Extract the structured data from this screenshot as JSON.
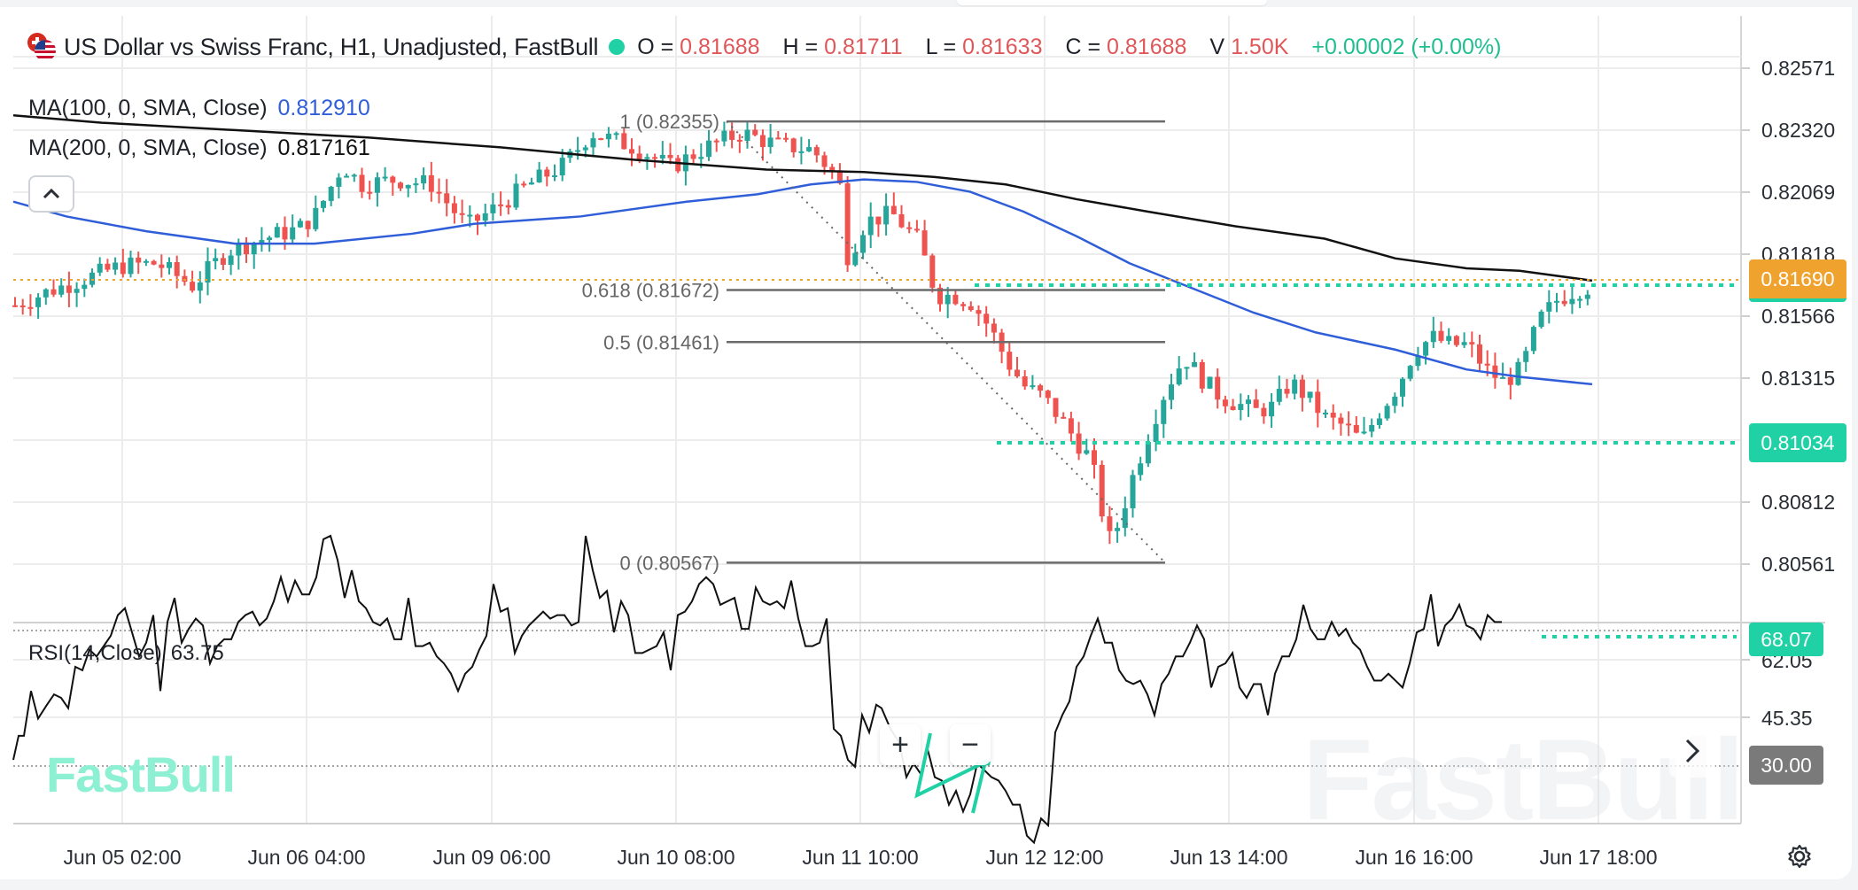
{
  "header": {
    "symbol_title": "US Dollar vs Swiss Franc, H1, Unadjusted, FastBull",
    "flag_icon": "usd-chf-flag-icon",
    "ohlc": [
      {
        "key": "O =",
        "value": "0.81688"
      },
      {
        "key": "H =",
        "value": "0.81711"
      },
      {
        "key": "L =",
        "value": "0.81633"
      },
      {
        "key": "C =",
        "value": "0.81688"
      },
      {
        "key": "V",
        "value": "1.50K"
      }
    ],
    "change": "+0.00002 (+0.00%)"
  },
  "indicators": {
    "ma100": {
      "label": "MA(100, 0, SMA, Close)",
      "value": "0.812910",
      "color": "#2f5ed8"
    },
    "ma200": {
      "label": "MA(200, 0, SMA, Close)",
      "value": "0.817161",
      "color": "#111111"
    },
    "rsi": {
      "label": "RSI(14,Close)",
      "value": "63.75"
    }
  },
  "price_axis": {
    "ticks": [
      "0.82571",
      "0.82320",
      "0.82069",
      "0.81818",
      "0.81566",
      "0.81315",
      "0.80812",
      "0.80561"
    ],
    "current_price_tag": {
      "value": "0.81690",
      "color": "#f0a22e"
    },
    "level_tag": {
      "value": "0.81034",
      "color": "#1fd1a4"
    }
  },
  "rsi_axis": {
    "ticks": [
      "62.05",
      "45.35"
    ],
    "overbought_tag": {
      "value": "68.07",
      "color": "#1fd1a4"
    },
    "oversold_tag": {
      "value": "30.00",
      "color": "#7a7a7a"
    }
  },
  "time_axis": {
    "labels": [
      "Jun 05 02:00",
      "Jun 06 04:00",
      "Jun 09 06:00",
      "Jun 10 08:00",
      "Jun 11 10:00",
      "Jun 12 12:00",
      "Jun 13 14:00",
      "Jun 16 16:00",
      "Jun 17 18:00"
    ]
  },
  "fibonacci": [
    {
      "label": "1 (0.82355)"
    },
    {
      "label": "0.618 (0.81672)"
    },
    {
      "label": "0.5 (0.81461)"
    },
    {
      "label": "0 (0.80567)"
    }
  ],
  "controls": {
    "zoom_in": "+",
    "zoom_out": "−",
    "collapse": "^",
    "next": "›"
  },
  "watermark": "FastBull",
  "colors": {
    "up": "#26a69a",
    "down": "#ef5350",
    "ma100": "#2f5ed8",
    "ma200": "#111111",
    "accent": "#1fd1a4",
    "current": "#f0a22e"
  },
  "chart_data": {
    "type": "candlestick",
    "title": "US Dollar vs Swiss Franc, H1, Unadjusted, FastBull",
    "symbol": "USD/CHF",
    "timeframe": "H1",
    "x_tick_labels": [
      "Jun 05 02:00",
      "Jun 06 04:00",
      "Jun 09 06:00",
      "Jun 10 08:00",
      "Jun 11 10:00",
      "Jun 12 12:00",
      "Jun 13 14:00",
      "Jun 16 16:00",
      "Jun 17 18:00"
    ],
    "y_tick_labels": [
      "0.82571",
      "0.82320",
      "0.82069",
      "0.81818",
      "0.81566",
      "0.81315",
      "0.80812",
      "0.80561"
    ],
    "ylim": [
      0.8048,
      0.8263
    ],
    "last_bar": {
      "open": 0.81688,
      "high": 0.81711,
      "low": 0.81633,
      "close": 0.81688,
      "volume": "1.50K",
      "change": "+0.00002 (+0.00%)"
    },
    "current_price": 0.8169,
    "horizontal_level": 0.81034,
    "fibonacci_retracement": {
      "1": 0.82355,
      "0.618": 0.81672,
      "0.5": 0.81461,
      "0": 0.80567
    },
    "series": [
      {
        "name": "MA(100, 0, SMA, Close)",
        "last": 0.81291,
        "points": [
          [
            0,
            0.8203
          ],
          [
            60,
            0.8197
          ],
          [
            150,
            0.8191
          ],
          [
            250,
            0.8186
          ],
          [
            340,
            0.8186
          ],
          [
            450,
            0.819
          ],
          [
            520,
            0.8194
          ],
          [
            640,
            0.8197
          ],
          [
            760,
            0.8203
          ],
          [
            840,
            0.8206
          ],
          [
            900,
            0.821
          ],
          [
            960,
            0.8212
          ],
          [
            1020,
            0.8211
          ],
          [
            1080,
            0.8207
          ],
          [
            1140,
            0.8199
          ],
          [
            1200,
            0.8189
          ],
          [
            1260,
            0.8178
          ],
          [
            1330,
            0.8168
          ],
          [
            1400,
            0.8158
          ],
          [
            1470,
            0.815
          ],
          [
            1560,
            0.8143
          ],
          [
            1640,
            0.8135
          ],
          [
            1700,
            0.8132
          ],
          [
            1782,
            0.8129
          ]
        ]
      },
      {
        "name": "MA(200, 0, SMA, Close)",
        "last": 0.817161,
        "points": [
          [
            0,
            0.8238
          ],
          [
            100,
            0.8235
          ],
          [
            250,
            0.8232
          ],
          [
            400,
            0.8229
          ],
          [
            550,
            0.8225
          ],
          [
            700,
            0.822
          ],
          [
            850,
            0.8216
          ],
          [
            960,
            0.8215
          ],
          [
            1040,
            0.8213
          ],
          [
            1120,
            0.821
          ],
          [
            1200,
            0.8204
          ],
          [
            1280,
            0.8199
          ],
          [
            1380,
            0.8193
          ],
          [
            1480,
            0.8188
          ],
          [
            1560,
            0.818
          ],
          [
            1640,
            0.8176
          ],
          [
            1700,
            0.8175
          ],
          [
            1782,
            0.8171
          ]
        ]
      },
      {
        "name": "RSI(14,Close)",
        "last": 63.75,
        "levels": [
          68.07,
          30.0
        ],
        "points": [
          [
            0,
            33
          ],
          [
            6,
            40
          ],
          [
            12,
            40
          ],
          [
            20,
            53
          ],
          [
            28,
            45
          ],
          [
            38,
            49
          ],
          [
            46,
            52
          ],
          [
            54,
            51
          ],
          [
            62,
            48
          ],
          [
            70,
            60
          ],
          [
            78,
            59
          ],
          [
            86,
            65
          ],
          [
            94,
            63
          ],
          [
            102,
            66
          ],
          [
            110,
            69
          ],
          [
            118,
            75
          ],
          [
            126,
            77
          ],
          [
            134,
            70
          ],
          [
            142,
            63
          ],
          [
            150,
            67
          ],
          [
            158,
            75
          ],
          [
            166,
            53
          ],
          [
            174,
            73
          ],
          [
            182,
            80
          ],
          [
            190,
            67
          ],
          [
            198,
            71
          ],
          [
            206,
            74
          ],
          [
            214,
            72
          ],
          [
            222,
            61
          ],
          [
            230,
            66
          ],
          [
            238,
            68
          ],
          [
            246,
            68
          ],
          [
            254,
            73
          ],
          [
            262,
            75
          ],
          [
            270,
            76
          ],
          [
            278,
            72
          ],
          [
            286,
            74
          ],
          [
            294,
            79
          ],
          [
            302,
            86
          ],
          [
            310,
            79
          ],
          [
            318,
            85
          ],
          [
            326,
            81
          ],
          [
            334,
            81
          ],
          [
            342,
            86
          ],
          [
            350,
            97
          ],
          [
            358,
            98
          ],
          [
            366,
            91
          ],
          [
            374,
            80
          ],
          [
            382,
            88
          ],
          [
            390,
            79
          ],
          [
            398,
            77
          ],
          [
            406,
            73
          ],
          [
            414,
            72
          ],
          [
            422,
            74
          ],
          [
            430,
            68
          ],
          [
            438,
            68
          ],
          [
            446,
            80
          ],
          [
            454,
            66
          ],
          [
            462,
            66
          ],
          [
            470,
            67
          ],
          [
            478,
            63
          ],
          [
            486,
            61
          ],
          [
            494,
            58
          ],
          [
            502,
            53
          ],
          [
            510,
            58
          ],
          [
            518,
            60
          ],
          [
            526,
            65
          ],
          [
            534,
            69
          ],
          [
            542,
            84
          ],
          [
            550,
            76
          ],
          [
            558,
            77
          ],
          [
            566,
            64
          ],
          [
            574,
            69
          ],
          [
            582,
            72
          ],
          [
            590,
            74
          ],
          [
            598,
            76
          ],
          [
            606,
            74
          ],
          [
            614,
            75
          ],
          [
            622,
            75
          ],
          [
            630,
            72
          ],
          [
            638,
            73
          ],
          [
            646,
            98
          ],
          [
            654,
            88
          ],
          [
            662,
            80
          ],
          [
            670,
            82
          ],
          [
            678,
            70
          ],
          [
            686,
            79
          ],
          [
            694,
            75
          ],
          [
            702,
            64
          ],
          [
            710,
            64
          ],
          [
            718,
            65
          ],
          [
            726,
            66
          ],
          [
            734,
            70
          ],
          [
            742,
            59
          ],
          [
            750,
            75
          ],
          [
            758,
            76
          ],
          [
            766,
            79
          ],
          [
            774,
            84
          ],
          [
            782,
            86
          ],
          [
            790,
            84
          ],
          [
            798,
            78
          ],
          [
            806,
            79
          ],
          [
            814,
            80
          ],
          [
            822,
            71
          ],
          [
            830,
            71
          ],
          [
            838,
            83
          ],
          [
            846,
            79
          ],
          [
            854,
            78
          ],
          [
            862,
            79
          ],
          [
            870,
            77
          ],
          [
            878,
            85
          ],
          [
            886,
            74
          ],
          [
            894,
            66
          ],
          [
            902,
            66
          ],
          [
            910,
            67
          ],
          [
            918,
            74
          ],
          [
            926,
            42
          ],
          [
            934,
            40
          ],
          [
            942,
            33
          ],
          [
            950,
            31
          ],
          [
            958,
            46
          ],
          [
            966,
            41
          ],
          [
            974,
            49
          ],
          [
            980,
            48
          ],
          [
            990,
            42
          ],
          [
            1000,
            38
          ],
          [
            1008,
            28
          ],
          [
            1016,
            32
          ],
          [
            1024,
            29
          ],
          [
            1032,
            36
          ],
          [
            1040,
            28
          ],
          [
            1048,
            27
          ],
          [
            1056,
            20
          ],
          [
            1064,
            24
          ],
          [
            1072,
            18
          ],
          [
            1080,
            23
          ],
          [
            1088,
            32
          ],
          [
            1096,
            30
          ],
          [
            1104,
            28
          ],
          [
            1112,
            27
          ],
          [
            1120,
            24
          ],
          [
            1128,
            20
          ],
          [
            1136,
            20
          ],
          [
            1144,
            11
          ],
          [
            1152,
            9
          ],
          [
            1160,
            16
          ],
          [
            1168,
            14
          ],
          [
            1176,
            41
          ],
          [
            1184,
            46
          ],
          [
            1192,
            50
          ],
          [
            1200,
            60
          ],
          [
            1208,
            63
          ],
          [
            1216,
            69
          ],
          [
            1224,
            74
          ],
          [
            1232,
            67
          ],
          [
            1240,
            67
          ],
          [
            1248,
            59
          ],
          [
            1256,
            56
          ],
          [
            1264,
            55
          ],
          [
            1272,
            56
          ],
          [
            1280,
            52
          ],
          [
            1288,
            46
          ],
          [
            1296,
            55
          ],
          [
            1304,
            58
          ],
          [
            1312,
            63
          ],
          [
            1320,
            63
          ],
          [
            1328,
            67
          ],
          [
            1336,
            72
          ],
          [
            1344,
            68
          ],
          [
            1352,
            54
          ],
          [
            1360,
            60
          ],
          [
            1368,
            61
          ],
          [
            1376,
            64
          ],
          [
            1384,
            54
          ],
          [
            1392,
            51
          ],
          [
            1400,
            55
          ],
          [
            1408,
            55
          ],
          [
            1416,
            46
          ],
          [
            1424,
            58
          ],
          [
            1432,
            63
          ],
          [
            1440,
            63
          ],
          [
            1448,
            68
          ],
          [
            1456,
            78
          ],
          [
            1464,
            71
          ],
          [
            1472,
            68
          ],
          [
            1480,
            68
          ],
          [
            1488,
            73
          ],
          [
            1496,
            69
          ],
          [
            1504,
            71
          ],
          [
            1512,
            67
          ],
          [
            1520,
            65
          ],
          [
            1528,
            60
          ],
          [
            1536,
            56
          ],
          [
            1544,
            56
          ],
          [
            1552,
            58
          ],
          [
            1560,
            56
          ],
          [
            1568,
            54
          ],
          [
            1576,
            61
          ],
          [
            1584,
            70
          ],
          [
            1592,
            71
          ],
          [
            1600,
            81
          ],
          [
            1608,
            66
          ],
          [
            1616,
            72
          ],
          [
            1624,
            74
          ],
          [
            1632,
            78
          ],
          [
            1640,
            72
          ],
          [
            1648,
            71
          ],
          [
            1656,
            68
          ],
          [
            1664,
            75
          ],
          [
            1672,
            73
          ],
          [
            1680,
            73
          ]
        ]
      }
    ]
  }
}
